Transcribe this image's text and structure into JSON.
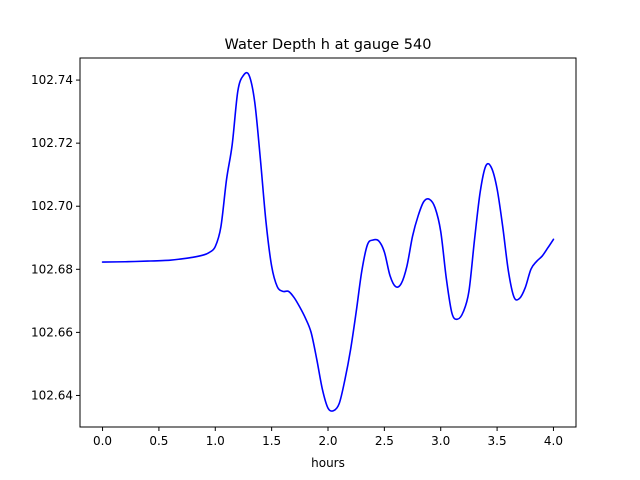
{
  "chart_data": {
    "type": "line",
    "title": "Water Depth h at gauge 540",
    "xlabel": "hours",
    "ylabel": "",
    "xlim": [
      -0.2,
      4.2
    ],
    "ylim": [
      102.63,
      102.747
    ],
    "xticks": [
      0.0,
      0.5,
      1.0,
      1.5,
      2.0,
      2.5,
      3.0,
      3.5,
      4.0
    ],
    "xtick_labels": [
      "0.0",
      "0.5",
      "1.0",
      "1.5",
      "2.0",
      "2.5",
      "3.0",
      "3.5",
      "4.0"
    ],
    "yticks": [
      102.64,
      102.66,
      102.68,
      102.7,
      102.72,
      102.74
    ],
    "ytick_labels": [
      "102.64",
      "102.66",
      "102.68",
      "102.70",
      "102.72",
      "102.74"
    ],
    "grid": false,
    "series": [
      {
        "color": "#0000ff",
        "x": [
          0.0,
          0.2,
          0.4,
          0.6,
          0.7,
          0.8,
          0.9,
          0.95,
          1.0,
          1.05,
          1.1,
          1.15,
          1.2,
          1.25,
          1.3,
          1.35,
          1.4,
          1.45,
          1.5,
          1.55,
          1.6,
          1.65,
          1.7,
          1.75,
          1.8,
          1.85,
          1.9,
          1.95,
          2.0,
          2.05,
          2.1,
          2.15,
          2.2,
          2.25,
          2.3,
          2.35,
          2.4,
          2.45,
          2.5,
          2.55,
          2.6,
          2.65,
          2.7,
          2.75,
          2.8,
          2.85,
          2.9,
          2.95,
          3.0,
          3.05,
          3.1,
          3.15,
          3.2,
          3.25,
          3.3,
          3.35,
          3.4,
          3.45,
          3.5,
          3.55,
          3.6,
          3.65,
          3.7,
          3.75,
          3.8,
          3.85,
          3.9,
          3.95,
          4.0
        ],
        "y": [
          102.6823,
          102.6824,
          102.6826,
          102.6829,
          102.6833,
          102.6838,
          102.6846,
          102.6854,
          102.6872,
          102.6935,
          102.7085,
          102.7195,
          102.7365,
          102.7415,
          102.7415,
          102.733,
          102.715,
          102.695,
          102.681,
          102.6745,
          102.673,
          102.673,
          102.671,
          102.668,
          102.6645,
          102.66,
          102.6515,
          102.642,
          102.636,
          102.6352,
          102.6375,
          102.645,
          102.6545,
          102.6665,
          102.6795,
          102.6878,
          102.6893,
          102.689,
          102.6855,
          102.678,
          102.6745,
          102.6755,
          102.681,
          102.6905,
          102.697,
          102.7015,
          102.7022,
          102.6995,
          102.692,
          102.677,
          102.666,
          102.6642,
          102.6665,
          102.673,
          102.6895,
          102.7045,
          102.7128,
          102.7122,
          102.7055,
          102.6935,
          102.6795,
          102.6712,
          102.6708,
          102.6742,
          102.68,
          102.6825,
          102.6842,
          102.6868,
          102.6895
        ]
      }
    ]
  }
}
